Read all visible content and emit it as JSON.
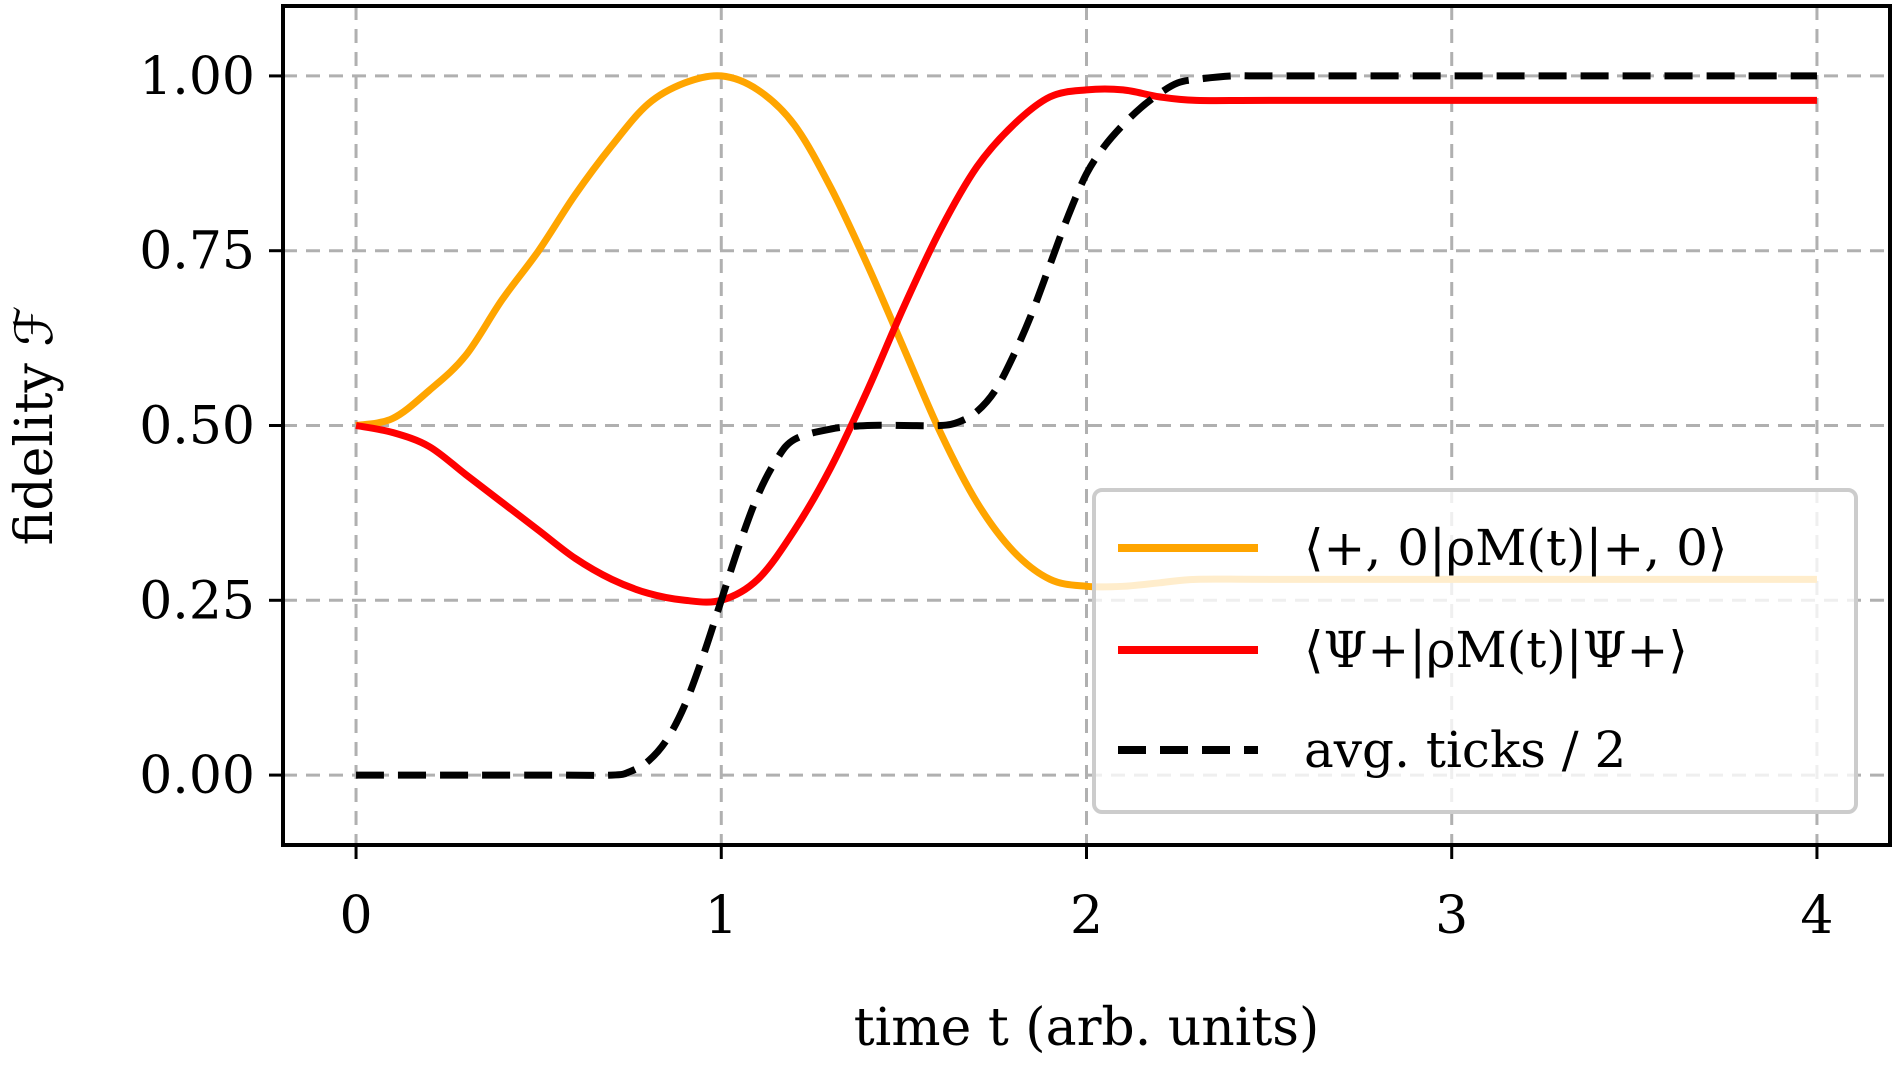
{
  "chart_data": {
    "type": "line",
    "xlabel": "time t (arb. units)",
    "ylabel": "fidelity ℱ",
    "xlim": [
      -0.2,
      4.2
    ],
    "ylim": [
      -0.1,
      1.1
    ],
    "grid": true,
    "legend_position": "lower-right",
    "xticks": [
      0,
      1,
      2,
      3,
      4
    ],
    "xtick_labels": [
      "0",
      "1",
      "2",
      "3",
      "4"
    ],
    "yticks": [
      0.0,
      0.25,
      0.5,
      0.75,
      1.0
    ],
    "ytick_labels": [
      "0.00",
      "0.25",
      "0.50",
      "0.75",
      "1.00"
    ],
    "series": [
      {
        "name": "⟨+, 0|ρM(t)|+, 0⟩",
        "color": "#FFA500",
        "style": "solid",
        "x": [
          0,
          0.1,
          0.2,
          0.3,
          0.4,
          0.5,
          0.6,
          0.7,
          0.8,
          0.9,
          1.0,
          1.1,
          1.2,
          1.3,
          1.4,
          1.5,
          1.6,
          1.7,
          1.8,
          1.9,
          2.0,
          2.1,
          2.2,
          2.3,
          2.5,
          3.0,
          3.5,
          4.0
        ],
        "y": [
          0.5,
          0.51,
          0.55,
          0.6,
          0.68,
          0.75,
          0.83,
          0.9,
          0.96,
          0.99,
          1.0,
          0.98,
          0.93,
          0.84,
          0.73,
          0.61,
          0.49,
          0.39,
          0.32,
          0.28,
          0.27,
          0.27,
          0.275,
          0.28,
          0.28,
          0.28,
          0.28,
          0.28
        ]
      },
      {
        "name": "⟨Ψ+|ρM(t)|Ψ+⟩",
        "color": "#FF0000",
        "style": "solid",
        "x": [
          0,
          0.1,
          0.2,
          0.3,
          0.4,
          0.5,
          0.6,
          0.7,
          0.8,
          0.9,
          1.0,
          1.1,
          1.2,
          1.3,
          1.4,
          1.5,
          1.6,
          1.7,
          1.8,
          1.9,
          2.0,
          2.1,
          2.2,
          2.3,
          2.5,
          3.0,
          3.5,
          4.0
        ],
        "y": [
          0.5,
          0.49,
          0.47,
          0.43,
          0.39,
          0.35,
          0.31,
          0.28,
          0.26,
          0.25,
          0.25,
          0.28,
          0.35,
          0.44,
          0.55,
          0.67,
          0.78,
          0.87,
          0.93,
          0.97,
          0.98,
          0.98,
          0.97,
          0.965,
          0.965,
          0.965,
          0.965,
          0.965
        ]
      },
      {
        "name": "avg. ticks / 2",
        "color": "#000000",
        "style": "dashed",
        "x": [
          0,
          0.5,
          0.7,
          0.75,
          0.8,
          0.85,
          0.9,
          0.95,
          1.0,
          1.05,
          1.1,
          1.15,
          1.2,
          1.3,
          1.4,
          1.5,
          1.6,
          1.65,
          1.7,
          1.75,
          1.8,
          1.85,
          1.9,
          1.95,
          2.0,
          2.05,
          2.1,
          2.15,
          2.2,
          2.25,
          2.3,
          2.4,
          2.5,
          3.0,
          3.5,
          4.0
        ],
        "y": [
          0.0,
          0.0,
          0.0,
          0.005,
          0.02,
          0.05,
          0.1,
          0.17,
          0.25,
          0.33,
          0.4,
          0.45,
          0.48,
          0.495,
          0.5,
          0.5,
          0.5,
          0.505,
          0.52,
          0.55,
          0.6,
          0.66,
          0.73,
          0.8,
          0.86,
          0.9,
          0.93,
          0.955,
          0.975,
          0.99,
          0.995,
          1.0,
          1.0,
          1.0,
          1.0,
          1.0
        ]
      }
    ]
  }
}
